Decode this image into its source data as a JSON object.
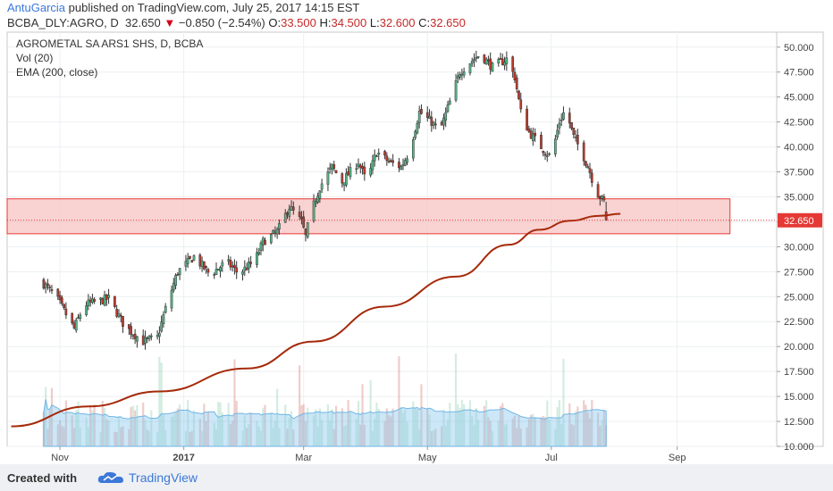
{
  "header": {
    "author": "AntuGarcia",
    "published": "published on TradingView.com, July 25, 2017 14:15 EST",
    "symbol": "BCBA_DLY:AGRO, D",
    "price": "32.650",
    "change": "−0.850 (−2.54%)",
    "open_label": "O:",
    "open": "33.500",
    "high_label": "H:",
    "high": "34.500",
    "low_label": "L:",
    "low": "32.600",
    "close_label": "C:",
    "close": "32.650"
  },
  "legend": {
    "title": "AGROMETAL SA ARS1 SHS, D, BCBA",
    "vol": "Vol (20)",
    "ema": "EMA (200, close)"
  },
  "footer": {
    "created_with": "Created with",
    "brand": "TradingView"
  },
  "colors": {
    "up": "#53b987",
    "down": "#c0392b",
    "ema": "#a52a0a",
    "zone_fill": "#f8caca",
    "zone_border": "#e53935",
    "volume_ma": "#8fc9ee",
    "price_tag": "#e53935"
  },
  "chart_data": {
    "type": "candlestick",
    "y_axis_ticks": [
      "10.000",
      "12.500",
      "15.000",
      "17.500",
      "20.000",
      "22.500",
      "25.000",
      "27.500",
      "30.000",
      "32.500",
      "35.000",
      "37.500",
      "40.000",
      "42.500",
      "45.000",
      "47.500",
      "50.000"
    ],
    "ylim": [
      10,
      51.5
    ],
    "x_axis_ticks": [
      "Nov",
      "2017",
      "Mar",
      "May",
      "Jul",
      "Sep"
    ],
    "last_price_label": "32.650",
    "resistance_zone": [
      31.3,
      34.8
    ],
    "anchors": [
      [
        "2016-10-23",
        26.5
      ],
      [
        "2016-10-30",
        25.0
      ],
      [
        "2016-11-08",
        21.8
      ],
      [
        "2016-11-13",
        24.2
      ],
      [
        "2016-11-25",
        24.8
      ],
      [
        "2016-12-03",
        22.0
      ],
      [
        "2016-12-12",
        20.5
      ],
      [
        "2016-12-19",
        20.9
      ],
      [
        "2016-12-24",
        24.5
      ],
      [
        "2016-12-29",
        27.5
      ],
      [
        "2017-01-06",
        29.0
      ],
      [
        "2017-01-14",
        27.2
      ],
      [
        "2017-01-22",
        28.5
      ],
      [
        "2017-01-28",
        27.3
      ],
      [
        "2017-02-05",
        28.6
      ],
      [
        "2017-02-09",
        30.5
      ],
      [
        "2017-02-16",
        31.5
      ],
      [
        "2017-02-22",
        34.0
      ],
      [
        "2017-02-28",
        32.5
      ],
      [
        "2017-03-02",
        31.0
      ],
      [
        "2017-03-04",
        33.0
      ],
      [
        "2017-03-09",
        36.0
      ],
      [
        "2017-03-15",
        38.0
      ],
      [
        "2017-03-20",
        36.5
      ],
      [
        "2017-03-28",
        38.5
      ],
      [
        "2017-04-01",
        36.5
      ],
      [
        "2017-04-06",
        39.5
      ],
      [
        "2017-04-12",
        38.5
      ],
      [
        "2017-04-18",
        38.0
      ],
      [
        "2017-04-22",
        39.5
      ],
      [
        "2017-04-27",
        43.5
      ],
      [
        "2017-05-03",
        42.5
      ],
      [
        "2017-05-07",
        41.5
      ],
      [
        "2017-05-12",
        44.5
      ],
      [
        "2017-05-17",
        47.5
      ],
      [
        "2017-05-22",
        48.5
      ],
      [
        "2017-05-27",
        49.3
      ],
      [
        "2017-06-02",
        48.0
      ],
      [
        "2017-06-09",
        48.8
      ],
      [
        "2017-06-13",
        47.0
      ],
      [
        "2017-06-16",
        43.5
      ],
      [
        "2017-06-20",
        41.5
      ],
      [
        "2017-06-24",
        40.5
      ],
      [
        "2017-06-28",
        39.5
      ],
      [
        "2017-07-01",
        39.0
      ],
      [
        "2017-07-05",
        42.5
      ],
      [
        "2017-07-08",
        43.8
      ],
      [
        "2017-07-12",
        41.0
      ],
      [
        "2017-07-16",
        39.5
      ],
      [
        "2017-07-20",
        37.5
      ],
      [
        "2017-07-23",
        35.5
      ],
      [
        "2017-07-27",
        34.5
      ],
      [
        "2017-07-30",
        32.65
      ]
    ],
    "ema_line": [
      [
        "2016-10-08",
        12.0
      ],
      [
        "2016-11-15",
        14.0
      ],
      [
        "2016-12-20",
        15.5
      ],
      [
        "2017-02-01",
        17.8
      ],
      [
        "2017-03-06",
        20.5
      ],
      [
        "2017-04-10",
        24.0
      ],
      [
        "2017-05-15",
        27.0
      ],
      [
        "2017-06-10",
        30.2
      ],
      [
        "2017-06-25",
        31.7
      ],
      [
        "2017-07-10",
        32.6
      ],
      [
        "2017-07-25",
        33.1
      ],
      [
        "2017-08-04",
        33.3
      ]
    ]
  }
}
